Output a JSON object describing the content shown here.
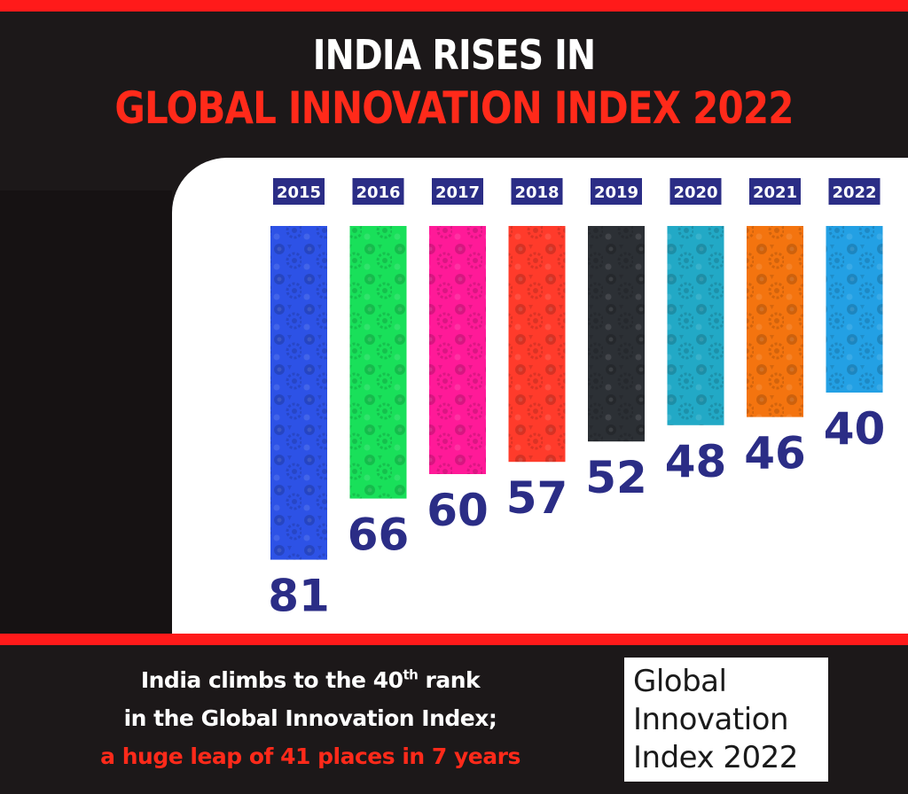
{
  "header": {
    "line1": "INDIA RISES IN",
    "line2": "GLOBAL INNOVATION INDEX 2022"
  },
  "chart_data": {
    "type": "bar",
    "orientation": "vertical-inverted (rank; lower value = taller bar)",
    "categories": [
      "2015",
      "2016",
      "2017",
      "2018",
      "2019",
      "2020",
      "2021",
      "2022"
    ],
    "values": [
      81,
      66,
      60,
      57,
      52,
      48,
      46,
      40
    ],
    "series": [
      {
        "values": [
          81,
          66,
          60,
          57,
          52,
          48,
          46,
          40
        ]
      }
    ],
    "colors": [
      "#2d52e6",
      "#19e05a",
      "#ff1a98",
      "#ff3b2b",
      "#2c3035",
      "#22a9c6",
      "#f4740f",
      "#23a0e4"
    ],
    "label_color": "#2b2d86",
    "year_badge_color": "#2b2d86",
    "data_labels": [
      "81",
      "66",
      "60",
      "57",
      "52",
      "48",
      "46",
      "40"
    ]
  },
  "footer": {
    "line1_pre": "India climbs to the 40",
    "line1_sup": "th",
    "line1_post": " rank",
    "line2": "in the Global Innovation Index;",
    "line3": "a huge leap of 41 places in 7 years"
  },
  "logo": {
    "line1": "Global",
    "line2": "Innovation",
    "line3": "Index 2022"
  }
}
